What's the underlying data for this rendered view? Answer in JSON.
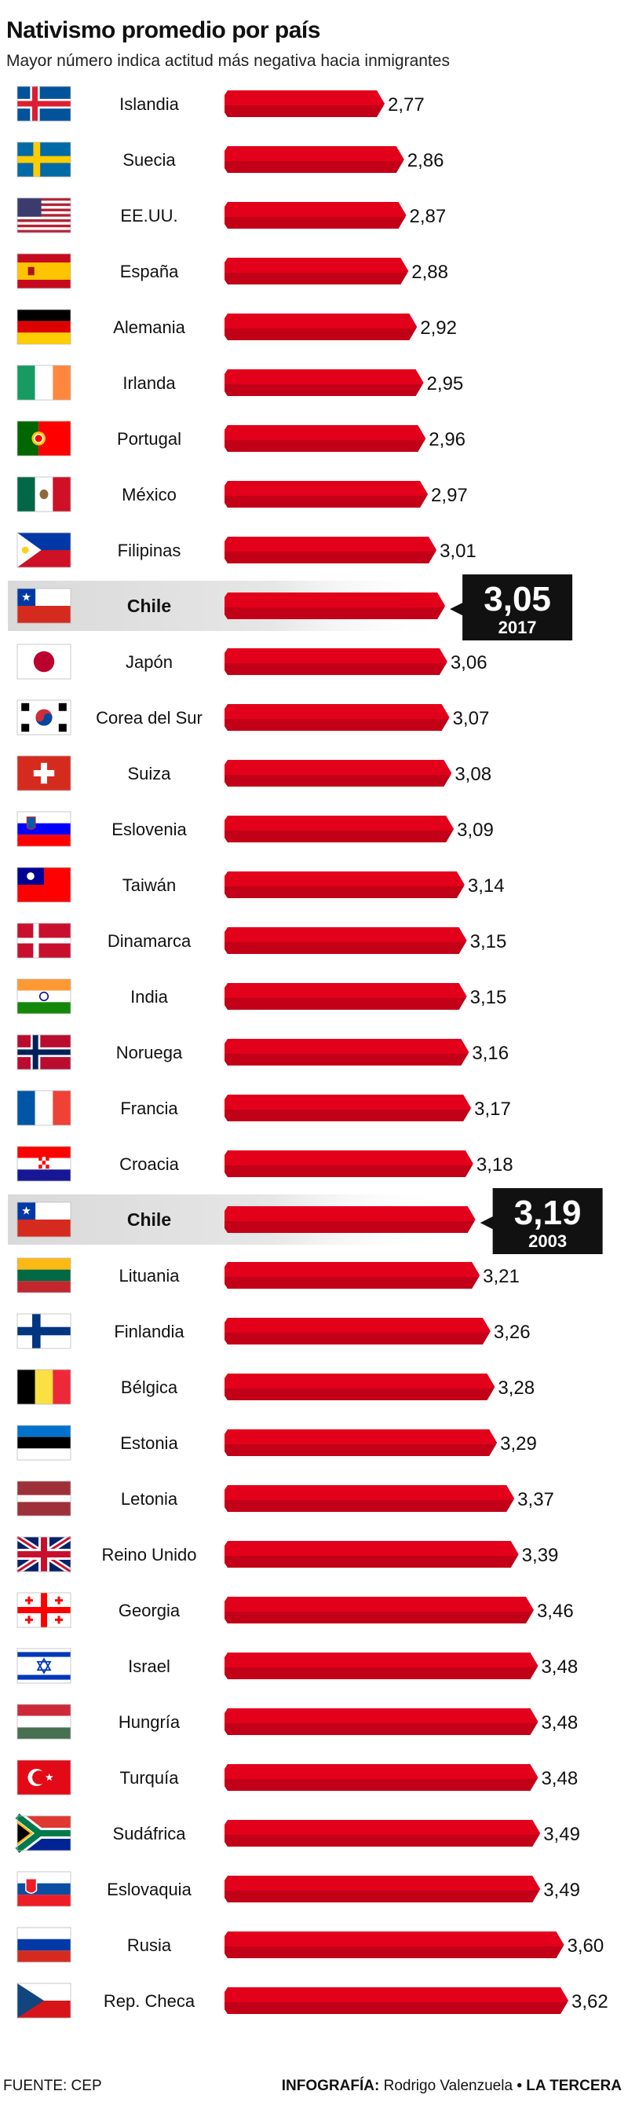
{
  "title": "Nativismo promedio por país",
  "subtitle": "Mayor número indica actitud más negativa hacia inmigrantes",
  "footer": {
    "source": "FUENTE: CEP",
    "credit_prefix": "INFOGRAFÍA:",
    "credit_name": "Rodrigo Valenzuela",
    "credit_sep": "•",
    "publisher": "LA TERCERA"
  },
  "colors": {
    "bar": "#e3001b",
    "bar_dark": "#a80014",
    "highlight_bg": "#d9d9d9",
    "callout_bg": "#111111",
    "callout_text": "#ffffff"
  },
  "chart_data": {
    "type": "bar",
    "orientation": "horizontal",
    "categories": [
      "Islandia",
      "Suecia",
      "EE.UU.",
      "España",
      "Alemania",
      "Irlanda",
      "Portugal",
      "México",
      "Filipinas",
      "Chile",
      "Japón",
      "Corea del Sur",
      "Suiza",
      "Eslovenia",
      "Taiwán",
      "Dinamarca",
      "India",
      "Noruega",
      "Francia",
      "Croacia",
      "Chile",
      "Lituania",
      "Finlandia",
      "Bélgica",
      "Estonia",
      "Letonia",
      "Reino Unido",
      "Georgia",
      "Israel",
      "Hungría",
      "Turquía",
      "Sudáfrica",
      "Eslovaquia",
      "Rusia",
      "Rep. Checa"
    ],
    "values": [
      2.77,
      2.86,
      2.87,
      2.88,
      2.92,
      2.95,
      2.96,
      2.97,
      3.01,
      3.05,
      3.06,
      3.07,
      3.08,
      3.09,
      3.14,
      3.15,
      3.15,
      3.16,
      3.17,
      3.18,
      3.19,
      3.21,
      3.26,
      3.28,
      3.29,
      3.37,
      3.39,
      3.46,
      3.48,
      3.48,
      3.48,
      3.49,
      3.49,
      3.6,
      3.62
    ],
    "value_labels": [
      "2,77",
      "2,86",
      "2,87",
      "2,88",
      "2,92",
      "2,95",
      "2,96",
      "2,97",
      "3,01",
      "3,05",
      "3,06",
      "3,07",
      "3,08",
      "3,09",
      "3,14",
      "3,15",
      "3,15",
      "3,16",
      "3,17",
      "3,18",
      "3,19",
      "3,21",
      "3,26",
      "3,28",
      "3,29",
      "3,37",
      "3,39",
      "3,46",
      "3,48",
      "3,48",
      "3,48",
      "3,49",
      "3,49",
      "3,60",
      "3,62"
    ],
    "flags": [
      "iceland",
      "sweden",
      "usa",
      "spain",
      "germany",
      "ireland",
      "portugal",
      "mexico",
      "philippines",
      "chile",
      "japan",
      "south-korea",
      "switzerland",
      "slovenia",
      "taiwan",
      "denmark",
      "india",
      "norway",
      "france",
      "croatia",
      "chile",
      "lithuania",
      "finland",
      "belgium",
      "estonia",
      "latvia",
      "united-kingdom",
      "georgia",
      "israel",
      "hungary",
      "turkey",
      "south-africa",
      "slovakia",
      "russia",
      "czech-republic"
    ],
    "highlights": [
      {
        "index": 9,
        "value_label": "3,05",
        "year": "2017"
      },
      {
        "index": 20,
        "value_label": "3,19",
        "year": "2003"
      }
    ],
    "grid": false,
    "legend": "none"
  }
}
